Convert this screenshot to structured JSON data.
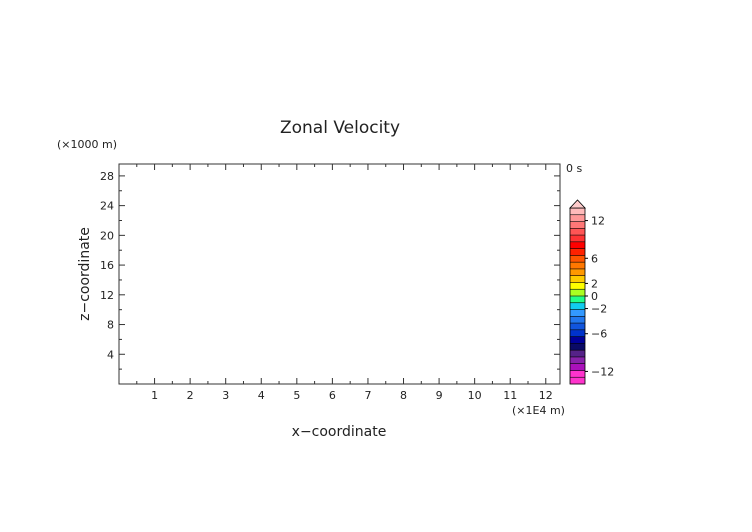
{
  "chart_data": {
    "type": "heatmap",
    "title": "Zonal Velocity",
    "xlabel": "x−coordinate",
    "ylabel": "z−coordinate",
    "x_unit": "(×1E4 m)",
    "y_unit": "(×1000 m)",
    "time_label": "0 s",
    "xlim": [
      0,
      12.4
    ],
    "ylim": [
      0,
      29.6
    ],
    "x_ticks": [
      "1",
      "2",
      "3",
      "4",
      "5",
      "6",
      "7",
      "8",
      "9",
      "10",
      "11",
      "12"
    ],
    "y_ticks": [
      "4",
      "8",
      "12",
      "16",
      "20",
      "24",
      "28"
    ],
    "colorbar": {
      "labels": [
        "12",
        "6",
        "2",
        "0",
        "−2",
        "−6",
        "−12"
      ],
      "levels": [
        12,
        6,
        2,
        0,
        -2,
        -6,
        -12
      ],
      "range": [
        -14,
        14
      ],
      "extend": "max",
      "colors": [
        "#ff33cc",
        "#ff33cc",
        "#aa11bb",
        "#8822aa",
        "#552288",
        "#0a0a66",
        "#000099",
        "#0033cc",
        "#1155dd",
        "#2277ee",
        "#3399ff",
        "#11ccee",
        "#22ff88",
        "#aaff22",
        "#ffff00",
        "#ffcc00",
        "#ff9900",
        "#ff7700",
        "#ff5500",
        "#ff2200",
        "#ff0000",
        "#ff3333",
        "#ff5555",
        "#ff7777",
        "#ff9999",
        "#ffbbbb"
      ]
    },
    "grid": false,
    "data": []
  }
}
